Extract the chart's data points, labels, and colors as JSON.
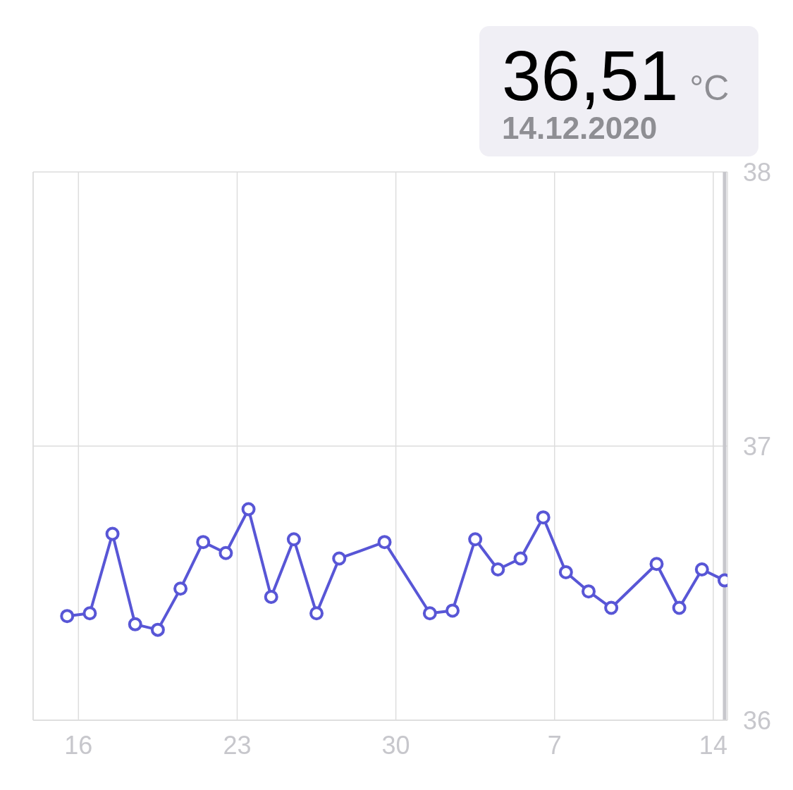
{
  "chart_data": {
    "type": "line",
    "annotations": [
      "36,51",
      "°C",
      "14.12.2020"
    ],
    "x": [
      "2020-11-15T12:00",
      "2020-11-16T12:00",
      "2020-11-17T12:00",
      "2020-11-18T12:00",
      "2020-11-19T12:00",
      "2020-11-20T12:00",
      "2020-11-21T12:00",
      "2020-11-22T12:00",
      "2020-11-23T12:00",
      "2020-11-24T12:00",
      "2020-11-25T12:00",
      "2020-11-26T12:00",
      "2020-11-27T12:00",
      "2020-11-29T12:00",
      "2020-12-01T12:00",
      "2020-12-02T12:00",
      "2020-12-03T12:00",
      "2020-12-04T12:00",
      "2020-12-05T12:00",
      "2020-12-06T12:00",
      "2020-12-07T12:00",
      "2020-12-08T12:00",
      "2020-12-09T12:00",
      "2020-12-11T12:00",
      "2020-12-12T12:00",
      "2020-12-13T12:00",
      "2020-12-14T12:00"
    ],
    "series": [
      {
        "color": "#5856d6",
        "values": [
          36.38,
          36.39,
          36.68,
          36.35,
          36.33,
          36.48,
          36.65,
          36.61,
          36.77,
          36.45,
          36.66,
          36.39,
          36.59,
          36.65,
          36.39,
          36.4,
          36.66,
          36.55,
          36.59,
          36.74,
          36.54,
          36.47,
          36.41,
          36.57,
          36.41,
          36.55,
          36.51
        ]
      }
    ],
    "xlim": [
      "2020-11-14",
      "2020-12-14T15:00"
    ],
    "xticks": [
      {
        "value": "2020-11-16",
        "label": "16"
      },
      {
        "value": "2020-11-23",
        "label": "23"
      },
      {
        "value": "2020-11-30",
        "label": "30"
      },
      {
        "value": "2020-12-07",
        "label": "7"
      },
      {
        "value": "2020-12-14",
        "label": "14"
      }
    ],
    "ylim": [
      36,
      38
    ],
    "yticks": [
      36,
      37,
      38
    ],
    "ref_lines": [
      {
        "axis": "x",
        "value": "2020-12-14T12:00",
        "color": "#c7c7cc"
      }
    ],
    "grid": true,
    "legend": false,
    "marker": "circle",
    "line_style": "solid"
  }
}
